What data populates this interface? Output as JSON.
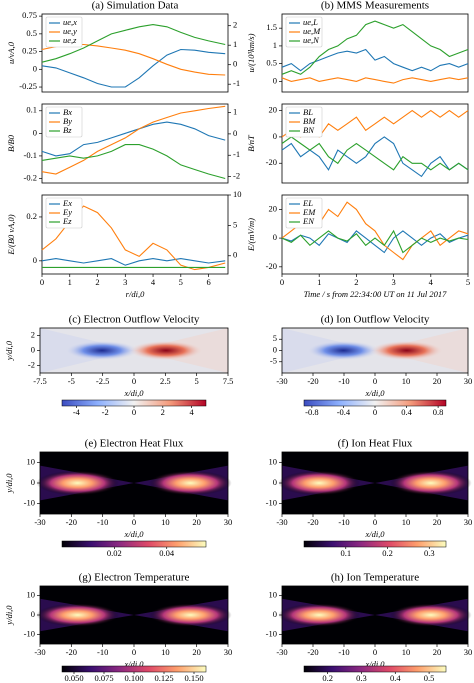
{
  "chart_data": [
    {
      "type": "line",
      "title": "(a) Simulation Data",
      "ylabel": "u/vA,0",
      "xlim": [
        0,
        6.7
      ],
      "ylim": [
        -0.32,
        0.78
      ],
      "yticks": [
        -0.25,
        0,
        0.25,
        0.5,
        0.75
      ],
      "y2lim": [
        -1.4,
        2.6
      ],
      "y2ticks": [
        -1,
        0,
        1,
        2
      ],
      "x": [
        0,
        0.5,
        1,
        1.5,
        2,
        2.5,
        3,
        3.5,
        4,
        4.5,
        5,
        5.5,
        6,
        6.6
      ],
      "series": [
        {
          "name": "ue,x",
          "color": "#1f77b4",
          "values": [
            0.05,
            0.02,
            -0.05,
            -0.12,
            -0.2,
            -0.25,
            -0.25,
            -0.12,
            0.05,
            0.2,
            0.28,
            0.27,
            0.24,
            0.22
          ]
        },
        {
          "name": "ue,y",
          "color": "#ff7f0e",
          "values": [
            0.28,
            0.32,
            0.35,
            0.35,
            0.33,
            0.3,
            0.27,
            0.22,
            0.15,
            0.07,
            0,
            -0.04,
            -0.07,
            -0.08
          ]
        },
        {
          "name": "ue,z",
          "color": "#2ca02c",
          "values": [
            0.1,
            0.15,
            0.22,
            0.3,
            0.4,
            0.5,
            0.55,
            0.6,
            0.63,
            0.6,
            0.52,
            0.45,
            0.4,
            0.35
          ]
        }
      ]
    },
    {
      "type": "line",
      "ylabel": "B/B0",
      "xlim": [
        0,
        6.7
      ],
      "ylim": [
        -0.22,
        0.13
      ],
      "yticks": [
        -0.2,
        -0.1,
        0,
        0.1
      ],
      "y2lim": [
        -2.3,
        1.4
      ],
      "y2ticks": [
        -2,
        -1,
        0,
        1
      ],
      "x": [
        0,
        0.5,
        1,
        1.5,
        2,
        2.5,
        3,
        3.5,
        4,
        4.5,
        5,
        5.5,
        6,
        6.6
      ],
      "series": [
        {
          "name": "Bx",
          "color": "#1f77b4",
          "values": [
            -0.08,
            -0.1,
            -0.09,
            -0.05,
            -0.04,
            -0.02,
            0,
            0.02,
            0.04,
            0.05,
            0.04,
            0.02,
            -0.01,
            -0.03
          ]
        },
        {
          "name": "By",
          "color": "#ff7f0e",
          "values": [
            -0.17,
            -0.18,
            -0.15,
            -0.12,
            -0.08,
            -0.05,
            -0.02,
            0.02,
            0.05,
            0.07,
            0.09,
            0.1,
            0.11,
            0.12
          ]
        },
        {
          "name": "Bz",
          "color": "#2ca02c",
          "values": [
            -0.12,
            -0.11,
            -0.1,
            -0.11,
            -0.1,
            -0.08,
            -0.05,
            -0.05,
            -0.07,
            -0.1,
            -0.14,
            -0.16,
            -0.18,
            -0.2
          ]
        }
      ]
    },
    {
      "type": "line",
      "ylabel": "E/(B0 vA,0)",
      "xlabel": "r/di,0",
      "xlim": [
        0,
        6.7
      ],
      "xticks": [
        0,
        1,
        2,
        3,
        4,
        5,
        6
      ],
      "ylim": [
        -0.06,
        0.3
      ],
      "yticks": [
        0,
        0.2
      ],
      "y2lim": [
        -3,
        10
      ],
      "y2ticks": [
        0,
        5,
        10
      ],
      "x": [
        0,
        0.5,
        1,
        1.5,
        2,
        2.5,
        3,
        3.5,
        4,
        4.5,
        5,
        5.5,
        6,
        6.6
      ],
      "series": [
        {
          "name": "Ex",
          "color": "#1f77b4",
          "values": [
            0,
            0.01,
            0,
            -0.01,
            0,
            0.01,
            -0.02,
            0,
            0.01,
            0,
            0.01,
            0,
            -0.01,
            0
          ]
        },
        {
          "name": "Ey",
          "color": "#ff7f0e",
          "values": [
            0.05,
            0.1,
            0.18,
            0.25,
            0.22,
            0.15,
            0.05,
            0.02,
            0.08,
            0.05,
            -0.02,
            -0.04,
            -0.03,
            -0.01
          ]
        },
        {
          "name": "Ez",
          "color": "#2ca02c",
          "values": [
            -0.03,
            -0.03,
            -0.03,
            -0.03,
            -0.03,
            -0.03,
            -0.03,
            -0.03,
            -0.03,
            -0.03,
            -0.03,
            -0.03,
            -0.03,
            -0.03
          ]
        }
      ]
    },
    {
      "type": "line",
      "title": "(b) MMS Measurements",
      "ylabel": "u/(10³km/s)",
      "xlim": [
        0,
        5
      ],
      "ylim": [
        -0.3,
        1.9
      ],
      "yticks": [
        0,
        0.5,
        1,
        1.5
      ],
      "x": [
        0,
        0.25,
        0.5,
        0.75,
        1,
        1.25,
        1.5,
        1.75,
        2,
        2.25,
        2.5,
        2.75,
        3,
        3.25,
        3.5,
        3.75,
        4,
        4.25,
        4.5,
        4.75,
        5
      ],
      "series": [
        {
          "name": "ue,L",
          "color": "#1f77b4",
          "values": [
            0.4,
            0.5,
            0.3,
            0.5,
            0.6,
            0.7,
            0.8,
            0.85,
            0.8,
            0.9,
            0.6,
            0.7,
            0.5,
            0.4,
            0.3,
            0.4,
            0.3,
            0.45,
            0.5,
            0.4,
            0.5
          ]
        },
        {
          "name": "ue,M",
          "color": "#ff7f0e",
          "values": [
            0.1,
            0,
            0.05,
            0.1,
            0,
            0.05,
            0.1,
            0.05,
            0,
            0.1,
            0.05,
            0,
            -0.05,
            0.05,
            0.1,
            0.05,
            0,
            0.05,
            0.1,
            0.05,
            0.1
          ]
        },
        {
          "name": "ue,N",
          "color": "#2ca02c",
          "values": [
            0.2,
            0.3,
            0.2,
            0.4,
            0.7,
            0.9,
            1,
            1.2,
            1.3,
            1.6,
            1.7,
            1.6,
            1.5,
            1.6,
            1.4,
            1.2,
            1,
            0.9,
            0.7,
            0.8,
            0.9
          ]
        }
      ]
    },
    {
      "type": "line",
      "ylabel": "B/nT",
      "xlim": [
        0,
        5
      ],
      "ylim": [
        -35,
        25
      ],
      "yticks": [
        -20,
        0,
        20
      ],
      "x": [
        0,
        0.25,
        0.5,
        0.75,
        1,
        1.25,
        1.5,
        1.75,
        2,
        2.25,
        2.5,
        2.75,
        3,
        3.25,
        3.5,
        3.75,
        4,
        4.25,
        4.5,
        4.75,
        5
      ],
      "series": [
        {
          "name": "BL",
          "color": "#1f77b4",
          "values": [
            -10,
            -5,
            -15,
            -10,
            -15,
            -25,
            -10,
            -15,
            -20,
            -15,
            -5,
            0,
            -5,
            -20,
            -25,
            -30,
            -20,
            -15,
            -25,
            -20,
            -25
          ]
        },
        {
          "name": "BM",
          "color": "#ff7f0e",
          "values": [
            0,
            5,
            0,
            5,
            0,
            10,
            5,
            10,
            15,
            5,
            10,
            15,
            10,
            15,
            20,
            15,
            20,
            15,
            20,
            15,
            20
          ]
        },
        {
          "name": "BN",
          "color": "#2ca02c",
          "values": [
            -5,
            0,
            -5,
            -10,
            -5,
            -15,
            -20,
            -10,
            -5,
            -10,
            -15,
            -20,
            -25,
            -15,
            -20,
            -20,
            -25,
            -20,
            -25,
            -20,
            -25
          ]
        }
      ]
    },
    {
      "type": "line",
      "ylabel": "E/(mV/m)",
      "xlabel": "Time / s from 22:34:00 UT on 11 Jul 2017",
      "xlim": [
        0,
        5
      ],
      "xticks": [
        0,
        1,
        2,
        3,
        4,
        5
      ],
      "ylim": [
        -25,
        30
      ],
      "yticks": [
        -20,
        0,
        20
      ],
      "x": [
        0,
        0.25,
        0.5,
        0.75,
        1,
        1.25,
        1.5,
        1.75,
        2,
        2.25,
        2.5,
        2.75,
        3,
        3.25,
        3.5,
        3.75,
        4,
        4.25,
        4.5,
        4.75,
        5
      ],
      "series": [
        {
          "name": "EL",
          "color": "#1f77b4",
          "values": [
            0,
            -2,
            2,
            0,
            -5,
            3,
            0,
            -3,
            5,
            0,
            -5,
            -10,
            0,
            5,
            0,
            -5,
            0,
            3,
            -3,
            0,
            2
          ]
        },
        {
          "name": "EM",
          "color": "#ff7f0e",
          "values": [
            0,
            5,
            10,
            15,
            10,
            20,
            15,
            25,
            20,
            10,
            5,
            -5,
            -10,
            -15,
            -5,
            0,
            5,
            -5,
            0,
            5,
            3
          ]
        },
        {
          "name": "EN",
          "color": "#2ca02c",
          "values": [
            0,
            -3,
            2,
            -5,
            0,
            5,
            0,
            -2,
            3,
            -5,
            0,
            -5,
            5,
            -10,
            -5,
            0,
            -3,
            0,
            -2,
            0,
            -1
          ]
        }
      ]
    },
    {
      "type": "heatmap",
      "title": "(c) Electron Outflow Velocity",
      "xlabel": "x/di,0",
      "ylabel": "y/di,0",
      "xlim": [
        -7.5,
        7.5
      ],
      "xticks": [
        -7.5,
        -5,
        -2.5,
        0,
        2.5,
        5,
        7.5
      ],
      "ylim": [
        -3,
        3
      ],
      "yticks": [
        -2,
        0,
        2
      ],
      "colormap": "coolwarm",
      "clim": [
        -5,
        5
      ],
      "cticks": [
        -4,
        -2,
        0,
        2,
        4
      ]
    },
    {
      "type": "heatmap",
      "title": "(d) Ion Outflow Velocity",
      "xlabel": "x/di,0",
      "xlim": [
        -30,
        30
      ],
      "xticks": [
        -30,
        -20,
        -10,
        0,
        10,
        20,
        30
      ],
      "ylim": [
        -10,
        10
      ],
      "yticks": [
        -5,
        0,
        5
      ],
      "colormap": "coolwarm",
      "clim": [
        -0.9,
        0.9
      ],
      "cticks": [
        -0.8,
        -0.4,
        0,
        0.4,
        0.8
      ]
    },
    {
      "type": "heatmap",
      "title": "(e) Electron Heat Flux",
      "xlabel": "x/di,0",
      "ylabel": "y/di,0",
      "xlim": [
        -30,
        30
      ],
      "xticks": [
        -30,
        -20,
        -10,
        0,
        10,
        20,
        30
      ],
      "ylim": [
        -15,
        15
      ],
      "yticks": [
        -10,
        0,
        10
      ],
      "colormap": "magma",
      "clim": [
        0,
        0.055
      ],
      "cticks": [
        0.02,
        0.04
      ]
    },
    {
      "type": "heatmap",
      "title": "(f) Ion Heat Flux",
      "xlabel": "x/di,0",
      "xlim": [
        -30,
        30
      ],
      "xticks": [
        -30,
        -20,
        -10,
        0,
        10,
        20,
        30
      ],
      "ylim": [
        -15,
        15
      ],
      "yticks": [
        -10,
        0,
        10
      ],
      "colormap": "magma",
      "clim": [
        0,
        0.34
      ],
      "cticks": [
        0.1,
        0.2,
        0.3
      ]
    },
    {
      "type": "heatmap",
      "title": "(g) Electron Temperature",
      "xlabel": "x/di,0",
      "ylabel": "y/di,0",
      "xlim": [
        -30,
        30
      ],
      "xticks": [
        -30,
        -20,
        -10,
        0,
        10,
        20,
        30
      ],
      "ylim": [
        -15,
        15
      ],
      "yticks": [
        -10,
        0,
        10
      ],
      "colormap": "magma",
      "clim": [
        0.04,
        0.16
      ],
      "cticks": [
        {
          "value": 0.05,
          "label": "0.050"
        },
        {
          "value": 0.075,
          "label": "0.075"
        },
        {
          "value": 0.1,
          "label": "0.100"
        },
        {
          "value": 0.125,
          "label": "0.125"
        },
        {
          "value": 0.15,
          "label": "0.150"
        }
      ]
    },
    {
      "type": "heatmap",
      "title": "(h) Ion Temperature",
      "xlabel": "x/di,0",
      "xlim": [
        -30,
        30
      ],
      "xticks": [
        -30,
        -20,
        -10,
        0,
        10,
        20,
        30
      ],
      "ylim": [
        -15,
        15
      ],
      "yticks": [
        -10,
        0,
        10
      ],
      "colormap": "magma",
      "clim": [
        0.13,
        0.55
      ],
      "cticks": [
        0.2,
        0.3,
        0.4,
        0.5
      ]
    }
  ]
}
